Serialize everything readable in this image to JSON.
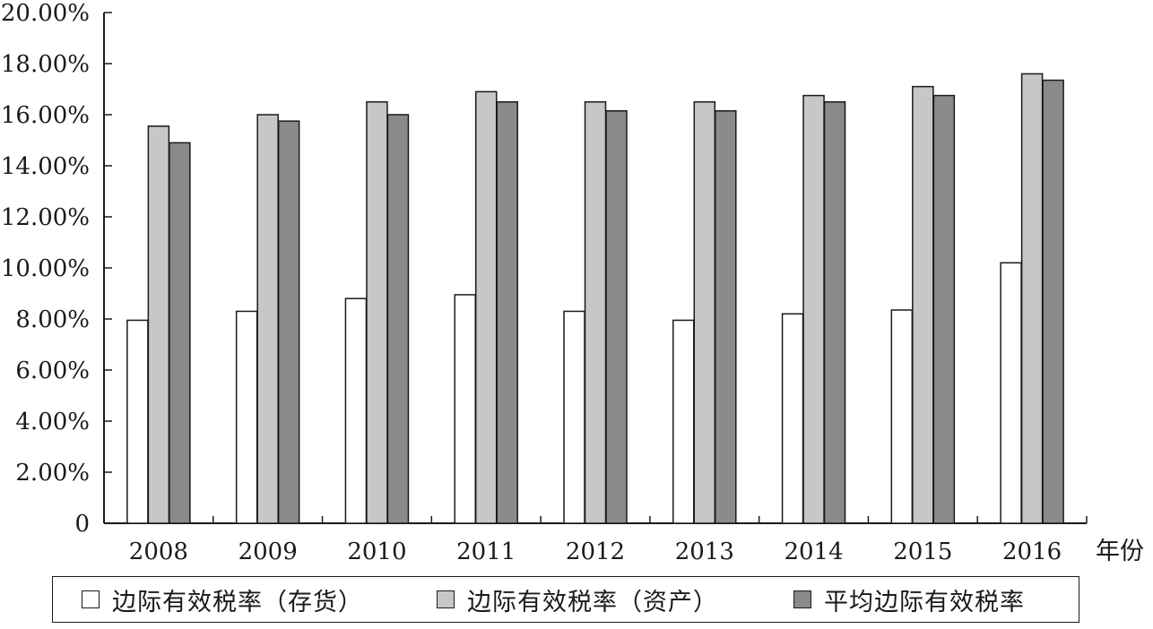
{
  "chart_data": {
    "type": "bar",
    "categories": [
      "2008",
      "2009",
      "2010",
      "2011",
      "2012",
      "2013",
      "2014",
      "2015",
      "2016"
    ],
    "series": [
      {
        "name": "边际有效税率（存货）",
        "values": [
          7.95,
          8.3,
          8.8,
          8.95,
          8.3,
          7.95,
          8.2,
          8.35,
          10.2
        ],
        "color": "#ffffff"
      },
      {
        "name": "边际有效税率（资产）",
        "values": [
          15.55,
          16.0,
          16.5,
          16.9,
          16.5,
          16.5,
          16.75,
          17.1,
          17.6
        ],
        "color": "#c7c7c7"
      },
      {
        "name": "平均边际有效税率",
        "values": [
          14.9,
          15.75,
          16.0,
          16.5,
          16.15,
          16.15,
          16.5,
          16.75,
          17.35
        ],
        "color": "#8a8a8a"
      }
    ],
    "yticks": [
      "0",
      "2.00%",
      "4.00%",
      "6.00%",
      "8.00%",
      "10.00%",
      "12.00%",
      "14.00%",
      "16.00%",
      "18.00%",
      "20.00%"
    ],
    "ylim": [
      0,
      20
    ],
    "xlabel": "年份",
    "ylabel": "",
    "title": "",
    "legend_position": "bottom",
    "grid": false
  }
}
